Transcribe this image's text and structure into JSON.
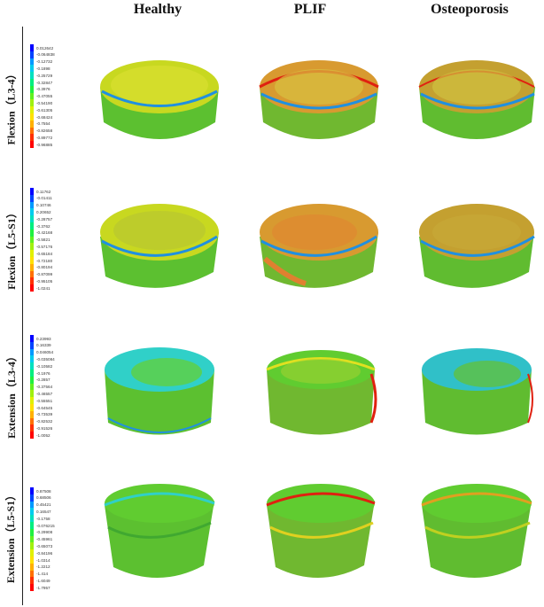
{
  "columns": [
    "Healthy",
    "PLIF",
    "Osteoporosis"
  ],
  "rows": [
    {
      "label": "Flexion（L3-4）",
      "legend": [
        {
          "value": "0.012642",
          "color": "#0000ff"
        },
        {
          "value": "-0.064838",
          "color": "#0044ff"
        },
        {
          "value": "-0.12732",
          "color": "#0099ff"
        },
        {
          "value": "-0.1898",
          "color": "#00ccee"
        },
        {
          "value": "-0.25729",
          "color": "#00e0c0"
        },
        {
          "value": "-0.32847",
          "color": "#00ee80"
        },
        {
          "value": "-0.3976",
          "color": "#20f040"
        },
        {
          "value": "-0.47055",
          "color": "#60f020"
        },
        {
          "value": "-0.54190",
          "color": "#a0f010"
        },
        {
          "value": "-0.61305",
          "color": "#e0f000"
        },
        {
          "value": "-0.68424",
          "color": "#ffe000"
        },
        {
          "value": "-0.7554",
          "color": "#ffb000"
        },
        {
          "value": "-0.82658",
          "color": "#ff7000"
        },
        {
          "value": "-0.89772",
          "color": "#ff3000"
        },
        {
          "value": "-0.96885",
          "color": "#ff0000"
        }
      ]
    },
    {
      "label": "Flexion（L5-S1）",
      "legend": [
        {
          "value": "0.11762",
          "color": "#0000ff"
        },
        {
          "value": "-0.01411",
          "color": "#0044ff"
        },
        {
          "value": "0.10746",
          "color": "#0099ff"
        },
        {
          "value": "0.20652",
          "color": "#00ccee"
        },
        {
          "value": "-0.28757",
          "color": "#00e0c0"
        },
        {
          "value": "-0.3762",
          "color": "#00ee80"
        },
        {
          "value": "-0.42168",
          "color": "#20f040"
        },
        {
          "value": "-0.5821",
          "color": "#60f020"
        },
        {
          "value": "-0.57176",
          "color": "#a0f010"
        },
        {
          "value": "-0.65184",
          "color": "#e0f000"
        },
        {
          "value": "-0.72180",
          "color": "#ffe000"
        },
        {
          "value": "-0.80194",
          "color": "#ffb000"
        },
        {
          "value": "-0.87099",
          "color": "#ff7000"
        },
        {
          "value": "-0.95105",
          "color": "#ff3000"
        },
        {
          "value": "-1.0241",
          "color": "#ff0000"
        }
      ]
    },
    {
      "label": "Extension（L3-4）",
      "legend": [
        {
          "value": "0.23993",
          "color": "#0000ff"
        },
        {
          "value": "0.16339",
          "color": "#0044ff"
        },
        {
          "value": "0.046054",
          "color": "#0099ff"
        },
        {
          "value": "-0.035084",
          "color": "#00ccee"
        },
        {
          "value": "-0.10582",
          "color": "#00e0c0"
        },
        {
          "value": "-0.1976",
          "color": "#00ee80"
        },
        {
          "value": "-0.2857",
          "color": "#20f040"
        },
        {
          "value": "-0.37564",
          "color": "#60f020"
        },
        {
          "value": "-0.46557",
          "color": "#a0f010"
        },
        {
          "value": "-0.55551",
          "color": "#e0f000"
        },
        {
          "value": "-0.64545",
          "color": "#ffe000"
        },
        {
          "value": "-0.73539",
          "color": "#ffb000"
        },
        {
          "value": "-0.82532",
          "color": "#ff7000"
        },
        {
          "value": "-0.91526",
          "color": "#ff3000"
        },
        {
          "value": "-1.0052",
          "color": "#ff0000"
        }
      ]
    },
    {
      "label": "Extension（L5-S1）",
      "legend": [
        {
          "value": "0.87508",
          "color": "#0000ff"
        },
        {
          "value": "0.68506",
          "color": "#0044ff"
        },
        {
          "value": "0.45421",
          "color": "#0099ff"
        },
        {
          "value": "0.16547",
          "color": "#00ccee"
        },
        {
          "value": "-0.1758",
          "color": "#00e0c0"
        },
        {
          "value": "-0.076215",
          "color": "#00ee80"
        },
        {
          "value": "-0.29908",
          "color": "#20f040"
        },
        {
          "value": "-0.45961",
          "color": "#60f020"
        },
        {
          "value": "-0.65073",
          "color": "#a0f010"
        },
        {
          "value": "-0.84196",
          "color": "#e0f000"
        },
        {
          "value": "-1.0314",
          "color": "#ffe000"
        },
        {
          "value": "-1.2212",
          "color": "#ffb000"
        },
        {
          "value": "-1.414",
          "color": "#ff7000"
        },
        {
          "value": "-1.6049",
          "color": "#ff3000"
        },
        {
          "value": "-1.7957",
          "color": "#ff0000"
        }
      ]
    }
  ],
  "disc_colors": {
    "healthy_top": "#c8d820",
    "healthy_side": "#5cc030",
    "plif_top": "#d89a30",
    "plif_side": "#70b830",
    "osteo_top": "#c4a030",
    "osteo_side": "#60bc30",
    "ext_top_cyan": "#30d0c8",
    "rim_red": "#e02010",
    "rim_blue": "#2090e0"
  }
}
